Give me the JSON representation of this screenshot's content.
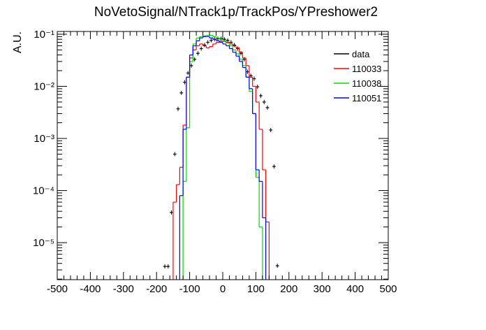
{
  "chart_data": {
    "type": "histogram",
    "title": "NoVetoSignal/NTrack1p/TrackPos/YPreshower2",
    "y_label": "A.U.",
    "log_y": true,
    "legend_position": "top-right",
    "xlim": [
      -500,
      500
    ],
    "xticks": [
      -500,
      -400,
      -300,
      -200,
      -100,
      0,
      100,
      200,
      300,
      400,
      500
    ],
    "ylim": [
      1.95e-06,
      0.113
    ],
    "yticks": [
      {
        "value": 1e-05,
        "label": "10⁻⁵"
      },
      {
        "value": 0.0001,
        "label": "10⁻⁴"
      },
      {
        "value": 0.001,
        "label": "10⁻³"
      },
      {
        "value": 0.01,
        "label": "10⁻²"
      },
      {
        "value": 0.1,
        "label": "10⁻¹"
      }
    ],
    "bins": [
      -500,
      -490,
      -480,
      -470,
      -460,
      -450,
      -440,
      -430,
      -420,
      -410,
      -400,
      -390,
      -380,
      -370,
      -360,
      -350,
      -340,
      -330,
      -320,
      -310,
      -300,
      -290,
      -280,
      -270,
      -260,
      -250,
      -240,
      -230,
      -220,
      -210,
      -200,
      -190,
      -180,
      -170,
      -160,
      -150,
      -140,
      -130,
      -120,
      -110,
      -100,
      -90,
      -80,
      -70,
      -60,
      -50,
      -40,
      -30,
      -20,
      -10,
      0,
      10,
      20,
      30,
      40,
      50,
      60,
      70,
      80,
      90,
      100,
      110,
      120,
      130,
      140,
      150,
      160,
      170,
      180,
      190,
      200,
      210,
      220,
      230,
      240,
      250,
      260,
      270,
      280,
      290,
      300,
      310,
      320,
      330,
      340,
      350,
      360,
      370,
      380,
      390,
      400,
      410,
      420,
      430,
      440,
      450,
      460,
      470,
      480,
      490,
      500
    ],
    "series": [
      {
        "name": "data",
        "color": "#000000",
        "draw": "points",
        "values": [
          0,
          0,
          0,
          0,
          0,
          0,
          0,
          0,
          0,
          0,
          0,
          0,
          0,
          0,
          0,
          0,
          0,
          0,
          0,
          0,
          0,
          0,
          0,
          0,
          0,
          0,
          0,
          0,
          0,
          0,
          0,
          0,
          3.5e-06,
          3.5e-06,
          3.8e-05,
          0.0005,
          0.0037,
          0.0075,
          0.012,
          0.018,
          0.025,
          0.033,
          0.043,
          0.053,
          0.062,
          0.07,
          0.076,
          0.08,
          0.082,
          0.082,
          0.08,
          0.076,
          0.07,
          0.062,
          0.053,
          0.043,
          0.033,
          0.019,
          0.016,
          0.014,
          0.0098,
          0.0066,
          0.005,
          0.0039,
          0.00145,
          0.00029,
          3.6e-06,
          0,
          0,
          0,
          0,
          0,
          0,
          0,
          0,
          0,
          0,
          0,
          0,
          0,
          0,
          0,
          0,
          0,
          0,
          0,
          0,
          0,
          0,
          0,
          0,
          0,
          0,
          0,
          0,
          0,
          0,
          0,
          0,
          0
        ]
      },
      {
        "name": "110033",
        "color": "#ff0000",
        "draw": "step",
        "values": [
          0,
          0,
          0,
          0,
          0,
          0,
          0,
          0,
          0,
          0,
          0,
          0,
          0,
          0,
          0,
          0,
          0,
          0,
          0,
          0,
          0,
          0,
          0,
          0,
          0,
          0,
          0,
          0,
          0,
          0,
          0,
          0,
          0,
          0,
          0,
          6e-05,
          0.00013,
          0.00028,
          0.0018,
          0.015,
          0.035,
          0.05,
          0.06,
          0.065,
          0.06,
          0.055,
          0.058,
          0.065,
          0.07,
          0.073,
          0.073,
          0.07,
          0.065,
          0.06,
          0.055,
          0.045,
          0.035,
          0.025,
          0.015,
          0.01,
          0.005,
          0.0015,
          0.00025,
          2.5e-05,
          0,
          0,
          0,
          0,
          0,
          0,
          0,
          0,
          0,
          0,
          0,
          0,
          0,
          0,
          0,
          0,
          0,
          0,
          0,
          0,
          0,
          0,
          0,
          0,
          0,
          0,
          0,
          0,
          0,
          0,
          0,
          0,
          0,
          0,
          0,
          0
        ]
      },
      {
        "name": "110038",
        "color": "#00dd00",
        "draw": "step",
        "values": [
          0,
          0,
          0,
          0,
          0,
          0,
          0,
          0,
          0,
          0,
          0,
          0,
          0,
          0,
          0,
          0,
          0,
          0,
          0,
          0,
          0,
          0,
          0,
          0,
          0,
          0,
          0,
          0,
          0,
          0,
          0,
          0,
          0,
          0,
          0,
          0,
          0,
          0,
          0.00015,
          0.0016,
          0.03,
          0.065,
          0.085,
          0.09,
          0.093,
          0.095,
          0.095,
          0.09,
          0.085,
          0.08,
          0.075,
          0.068,
          0.06,
          0.05,
          0.042,
          0.033,
          0.025,
          0.015,
          0.008,
          0.003,
          0.00018,
          2e-05,
          0,
          0,
          0,
          0,
          0,
          0,
          0,
          0,
          0,
          0,
          0,
          0,
          0,
          0,
          0,
          0,
          0,
          0,
          0,
          0,
          0,
          0,
          0,
          0,
          0,
          0,
          0,
          0,
          0,
          0,
          0,
          0,
          0,
          0,
          0,
          0,
          0,
          0
        ]
      },
      {
        "name": "110051",
        "color": "#0000ff",
        "draw": "step",
        "values": [
          0,
          0,
          0,
          0,
          0,
          0,
          0,
          0,
          0,
          0,
          0,
          0,
          0,
          0,
          0,
          0,
          0,
          0,
          0,
          0,
          0,
          0,
          0,
          0,
          0,
          0,
          0,
          0,
          0,
          0,
          0,
          0,
          0,
          0,
          0,
          0,
          0,
          8e-05,
          0.0015,
          0.015,
          0.04,
          0.06,
          0.075,
          0.085,
          0.09,
          0.09,
          0.085,
          0.08,
          0.075,
          0.07,
          0.065,
          0.06,
          0.053,
          0.045,
          0.038,
          0.03,
          0.023,
          0.015,
          0.009,
          0.003,
          0.00025,
          0.00015,
          3e-05,
          0,
          0,
          0,
          0,
          0,
          0,
          0,
          0,
          0,
          0,
          0,
          0,
          0,
          0,
          0,
          0,
          0,
          0,
          0,
          0,
          0,
          0,
          0,
          0,
          0,
          0,
          0,
          0,
          0,
          0,
          0,
          0,
          0,
          0,
          0,
          0,
          0
        ]
      }
    ]
  }
}
